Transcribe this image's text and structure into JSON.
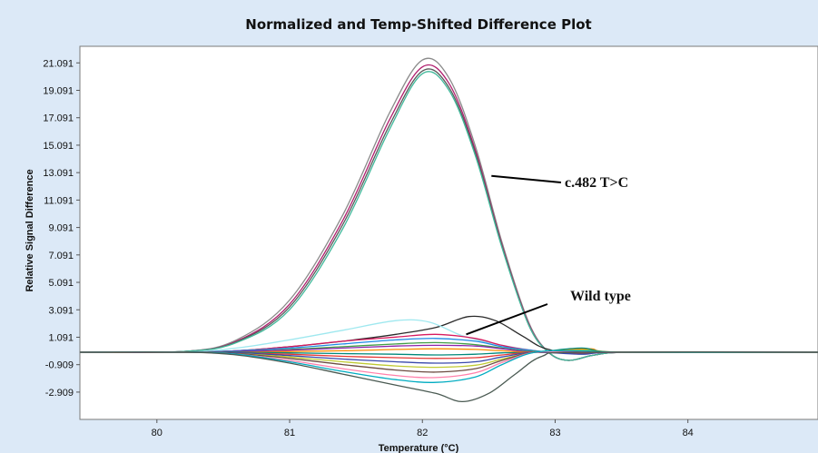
{
  "chart_data": {
    "type": "line",
    "title": "Normalized and Temp-Shifted Difference Plot",
    "xlabel": "Temperature (°C)",
    "ylabel": "Relative Signal Difference",
    "xlim": [
      79.42,
      84.98
    ],
    "ylim": [
      -4.9,
      22.3
    ],
    "x_ticks": [
      80,
      81,
      82,
      83,
      84
    ],
    "y_ticks": [
      21.091,
      19.091,
      17.091,
      15.091,
      13.091,
      11.091,
      9.091,
      7.091,
      5.091,
      3.091,
      1.091,
      -0.909,
      -2.909
    ],
    "x_tick_labels": [
      "80",
      "81",
      "82",
      "83",
      "84"
    ],
    "y_tick_labels": [
      "21.091",
      "19.091",
      "17.091",
      "15.091",
      "13.091",
      "11.091",
      "9.091",
      "7.091",
      "5.091",
      "3.091",
      "1.091",
      "-0.909",
      "-2.909"
    ],
    "background_color": "#ffffff",
    "frame_color": "#dce9f7",
    "series": [
      {
        "color": "#8a8a8a",
        "values": [
          [
            79.42,
            0
          ],
          [
            80.2,
            0.05
          ],
          [
            80.6,
            0.9
          ],
          [
            81.0,
            3.8
          ],
          [
            81.4,
            10.0
          ],
          [
            81.75,
            17.4
          ],
          [
            82.0,
            21.3
          ],
          [
            82.2,
            20.0
          ],
          [
            82.4,
            15.0
          ],
          [
            82.6,
            8.0
          ],
          [
            82.8,
            2.2
          ],
          [
            82.95,
            0
          ],
          [
            83.1,
            -0.6
          ],
          [
            83.3,
            -0.2
          ],
          [
            83.6,
            0
          ],
          [
            84.98,
            0
          ]
        ]
      },
      {
        "color": "#b01e6e",
        "values": [
          [
            79.42,
            0
          ],
          [
            80.2,
            0.05
          ],
          [
            80.6,
            0.8
          ],
          [
            81.0,
            3.5
          ],
          [
            81.4,
            9.6
          ],
          [
            81.75,
            16.9
          ],
          [
            82.0,
            20.8
          ],
          [
            82.2,
            19.6
          ],
          [
            82.4,
            14.7
          ],
          [
            82.6,
            7.8
          ],
          [
            82.8,
            2.1
          ],
          [
            82.95,
            0
          ],
          [
            83.1,
            -0.6
          ],
          [
            83.3,
            -0.2
          ],
          [
            83.6,
            0
          ],
          [
            84.98,
            0
          ]
        ]
      },
      {
        "color": "#5a5a5a",
        "values": [
          [
            79.42,
            0
          ],
          [
            80.2,
            0.05
          ],
          [
            80.6,
            0.75
          ],
          [
            81.0,
            3.3
          ],
          [
            81.4,
            9.3
          ],
          [
            81.75,
            16.5
          ],
          [
            82.0,
            20.5
          ],
          [
            82.2,
            19.3
          ],
          [
            82.4,
            14.5
          ],
          [
            82.6,
            7.7
          ],
          [
            82.8,
            2.0
          ],
          [
            82.95,
            0
          ],
          [
            83.1,
            -0.6
          ],
          [
            83.3,
            -0.2
          ],
          [
            83.6,
            0
          ],
          [
            84.98,
            0
          ]
        ]
      },
      {
        "color": "#3fb89a",
        "values": [
          [
            79.42,
            0
          ],
          [
            80.2,
            0.05
          ],
          [
            80.6,
            0.7
          ],
          [
            81.0,
            3.1
          ],
          [
            81.4,
            9.0
          ],
          [
            81.75,
            16.2
          ],
          [
            82.0,
            20.3
          ],
          [
            82.2,
            19.1
          ],
          [
            82.4,
            14.3
          ],
          [
            82.6,
            7.6
          ],
          [
            82.8,
            2.0
          ],
          [
            82.95,
            0
          ],
          [
            83.1,
            -0.6
          ],
          [
            83.3,
            -0.2
          ],
          [
            83.6,
            0
          ],
          [
            84.98,
            0
          ]
        ]
      },
      {
        "color": "#2a2a2a",
        "values": [
          [
            79.42,
            0
          ],
          [
            80.2,
            0
          ],
          [
            80.6,
            0.1
          ],
          [
            81.0,
            0.4
          ],
          [
            81.4,
            0.8
          ],
          [
            81.8,
            1.3
          ],
          [
            82.1,
            1.8
          ],
          [
            82.35,
            2.6
          ],
          [
            82.55,
            2.3
          ],
          [
            82.75,
            1.2
          ],
          [
            82.95,
            0.2
          ],
          [
            83.3,
            0
          ],
          [
            84.98,
            0
          ]
        ]
      },
      {
        "color": "#9fe8ef",
        "values": [
          [
            79.42,
            0
          ],
          [
            80.2,
            0
          ],
          [
            80.6,
            0.3
          ],
          [
            81.0,
            0.9
          ],
          [
            81.4,
            1.6
          ],
          [
            81.8,
            2.3
          ],
          [
            82.05,
            2.2
          ],
          [
            82.3,
            1.2
          ],
          [
            82.55,
            0.6
          ],
          [
            82.8,
            0.2
          ],
          [
            83.1,
            0
          ],
          [
            84.98,
            0
          ]
        ]
      },
      {
        "color": "#d81b60",
        "values": [
          [
            79.42,
            0
          ],
          [
            80.2,
            0
          ],
          [
            80.6,
            0.1
          ],
          [
            81.0,
            0.4
          ],
          [
            81.4,
            0.8
          ],
          [
            81.8,
            1.1
          ],
          [
            82.1,
            1.3
          ],
          [
            82.4,
            1.0
          ],
          [
            82.6,
            0.5
          ],
          [
            82.85,
            0.1
          ],
          [
            83.2,
            0
          ],
          [
            84.98,
            0
          ]
        ]
      },
      {
        "color": "#1e88e5",
        "values": [
          [
            79.42,
            0
          ],
          [
            80.2,
            0
          ],
          [
            80.6,
            0.1
          ],
          [
            81.0,
            0.3
          ],
          [
            81.4,
            0.6
          ],
          [
            81.8,
            0.9
          ],
          [
            82.1,
            1.0
          ],
          [
            82.4,
            0.8
          ],
          [
            82.6,
            0.4
          ],
          [
            82.85,
            0.1
          ],
          [
            83.2,
            0
          ],
          [
            84.98,
            0
          ]
        ]
      },
      {
        "color": "#43a047",
        "values": [
          [
            79.42,
            0
          ],
          [
            80.2,
            0
          ],
          [
            80.6,
            0.05
          ],
          [
            81.0,
            0.2
          ],
          [
            81.4,
            0.4
          ],
          [
            81.8,
            0.6
          ],
          [
            82.1,
            0.7
          ],
          [
            82.4,
            0.55
          ],
          [
            82.6,
            0.3
          ],
          [
            82.85,
            0.05
          ],
          [
            83.2,
            0.2
          ],
          [
            83.5,
            0
          ],
          [
            84.98,
            0
          ]
        ]
      },
      {
        "color": "#8e24aa",
        "values": [
          [
            79.42,
            0
          ],
          [
            80.2,
            0
          ],
          [
            80.6,
            0.05
          ],
          [
            81.0,
            0.15
          ],
          [
            81.4,
            0.3
          ],
          [
            81.8,
            0.45
          ],
          [
            82.1,
            0.5
          ],
          [
            82.4,
            0.45
          ],
          [
            82.6,
            0.25
          ],
          [
            82.85,
            0
          ],
          [
            83.2,
            0.1
          ],
          [
            83.5,
            0
          ],
          [
            84.98,
            0
          ]
        ]
      },
      {
        "color": "#fb8c00",
        "values": [
          [
            79.42,
            0
          ],
          [
            80.2,
            0
          ],
          [
            80.6,
            0
          ],
          [
            81.0,
            0.05
          ],
          [
            81.4,
            0.1
          ],
          [
            81.8,
            0.2
          ],
          [
            82.1,
            0.25
          ],
          [
            82.4,
            0.2
          ],
          [
            82.6,
            0.1
          ],
          [
            82.85,
            0
          ],
          [
            83.25,
            0.25
          ],
          [
            83.5,
            0
          ],
          [
            84.98,
            0
          ]
        ]
      },
      {
        "color": "#00897b",
        "values": [
          [
            79.42,
            0
          ],
          [
            80.2,
            0
          ],
          [
            80.6,
            0
          ],
          [
            81.0,
            -0.05
          ],
          [
            81.4,
            -0.1
          ],
          [
            81.8,
            -0.15
          ],
          [
            82.1,
            -0.2
          ],
          [
            82.4,
            -0.15
          ],
          [
            82.6,
            -0.05
          ],
          [
            82.85,
            0
          ],
          [
            83.2,
            0.3
          ],
          [
            83.5,
            0
          ],
          [
            84.98,
            0
          ]
        ]
      },
      {
        "color": "#e53935",
        "values": [
          [
            79.42,
            0
          ],
          [
            80.2,
            0
          ],
          [
            80.6,
            -0.05
          ],
          [
            81.0,
            -0.15
          ],
          [
            81.4,
            -0.3
          ],
          [
            81.8,
            -0.4
          ],
          [
            82.1,
            -0.45
          ],
          [
            82.4,
            -0.4
          ],
          [
            82.6,
            -0.2
          ],
          [
            82.85,
            0
          ],
          [
            83.2,
            -0.1
          ],
          [
            83.5,
            0
          ],
          [
            84.98,
            0
          ]
        ]
      },
      {
        "color": "#3949ab",
        "values": [
          [
            79.42,
            0
          ],
          [
            80.2,
            0
          ],
          [
            80.6,
            -0.05
          ],
          [
            81.0,
            -0.25
          ],
          [
            81.4,
            -0.5
          ],
          [
            81.8,
            -0.7
          ],
          [
            82.1,
            -0.8
          ],
          [
            82.4,
            -0.7
          ],
          [
            82.6,
            -0.35
          ],
          [
            82.85,
            0
          ],
          [
            83.2,
            -0.15
          ],
          [
            83.5,
            0
          ],
          [
            84.98,
            0
          ]
        ]
      },
      {
        "color": "#c0ca33",
        "values": [
          [
            79.42,
            0
          ],
          [
            80.2,
            0
          ],
          [
            80.6,
            -0.1
          ],
          [
            81.0,
            -0.35
          ],
          [
            81.4,
            -0.7
          ],
          [
            81.8,
            -1.0
          ],
          [
            82.1,
            -1.1
          ],
          [
            82.4,
            -0.95
          ],
          [
            82.6,
            -0.5
          ],
          [
            82.85,
            0
          ],
          [
            83.2,
            0.15
          ],
          [
            83.5,
            0
          ],
          [
            84.98,
            0
          ]
        ]
      },
      {
        "color": "#6d4c41",
        "values": [
          [
            79.42,
            0
          ],
          [
            80.2,
            0
          ],
          [
            80.6,
            -0.1
          ],
          [
            81.0,
            -0.45
          ],
          [
            81.4,
            -0.9
          ],
          [
            81.8,
            -1.3
          ],
          [
            82.1,
            -1.45
          ],
          [
            82.4,
            -1.2
          ],
          [
            82.6,
            -0.6
          ],
          [
            82.85,
            0
          ],
          [
            83.2,
            -0.05
          ],
          [
            83.5,
            0
          ],
          [
            84.98,
            0
          ]
        ]
      },
      {
        "color": "#ff80ab",
        "values": [
          [
            79.42,
            0
          ],
          [
            80.2,
            0
          ],
          [
            80.6,
            -0.15
          ],
          [
            81.0,
            -0.6
          ],
          [
            81.4,
            -1.2
          ],
          [
            81.8,
            -1.7
          ],
          [
            82.1,
            -1.85
          ],
          [
            82.4,
            -1.5
          ],
          [
            82.6,
            -0.75
          ],
          [
            82.85,
            0
          ],
          [
            83.2,
            0
          ],
          [
            84.98,
            0
          ]
        ]
      },
      {
        "color": "#00acc1",
        "values": [
          [
            79.42,
            0
          ],
          [
            80.2,
            0
          ],
          [
            80.6,
            -0.15
          ],
          [
            81.0,
            -0.7
          ],
          [
            81.4,
            -1.4
          ],
          [
            81.8,
            -2.0
          ],
          [
            82.1,
            -2.2
          ],
          [
            82.4,
            -1.8
          ],
          [
            82.6,
            -0.9
          ],
          [
            82.85,
            0
          ],
          [
            83.2,
            0.1
          ],
          [
            83.5,
            0
          ],
          [
            84.98,
            0
          ]
        ]
      },
      {
        "color": "#4a5a52",
        "values": [
          [
            79.42,
            0
          ],
          [
            80.2,
            0
          ],
          [
            80.6,
            -0.2
          ],
          [
            81.0,
            -0.8
          ],
          [
            81.4,
            -1.6
          ],
          [
            81.8,
            -2.4
          ],
          [
            82.1,
            -3.0
          ],
          [
            82.3,
            -3.6
          ],
          [
            82.5,
            -3.0
          ],
          [
            82.7,
            -1.6
          ],
          [
            82.9,
            -0.3
          ],
          [
            83.2,
            0
          ],
          [
            84.98,
            0
          ]
        ]
      }
    ],
    "annotations": [
      {
        "text": "c.482 T>C",
        "point": [
          82.52,
          12.85
        ]
      },
      {
        "text": "Wild type",
        "point": [
          82.33,
          1.3
        ]
      }
    ]
  }
}
